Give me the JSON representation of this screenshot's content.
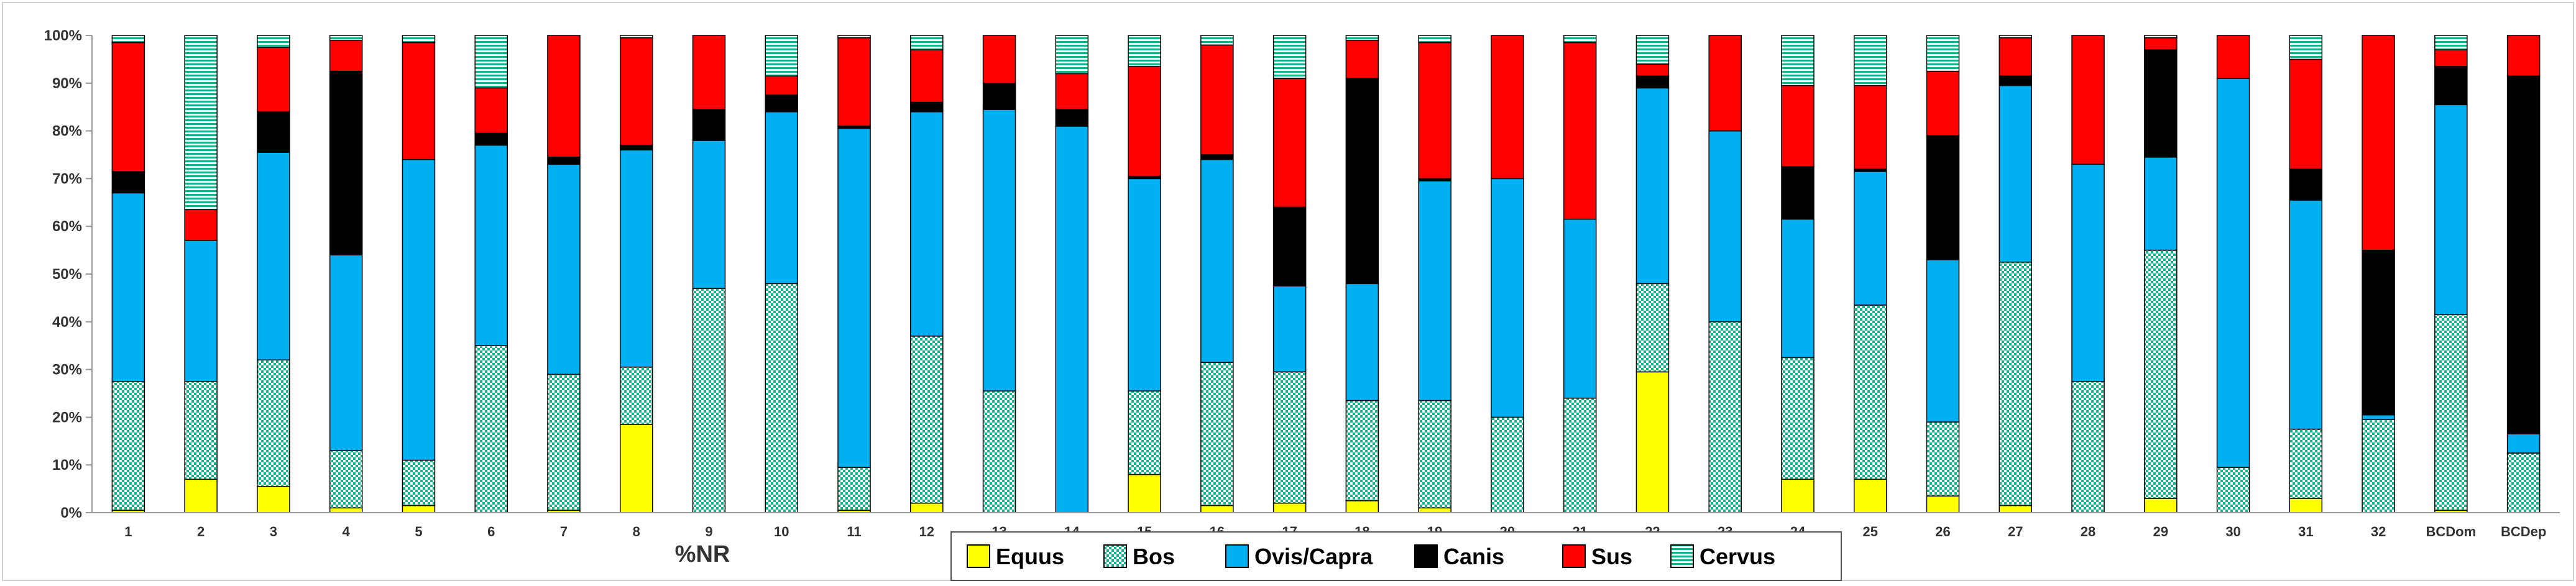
{
  "chart_data": {
    "type": "bar",
    "stacked": true,
    "title": "",
    "xlabel": "%NR",
    "ylabel": "",
    "ylim": [
      0,
      100
    ],
    "y_ticks": [
      "0%",
      "10%",
      "20%",
      "30%",
      "40%",
      "50%",
      "60%",
      "70%",
      "80%",
      "90%",
      "100%"
    ],
    "grid": false,
    "legend_position": "bottom",
    "categories": [
      "1",
      "2",
      "3",
      "4",
      "5",
      "6",
      "7",
      "8",
      "9",
      "10",
      "11",
      "12",
      "13",
      "14",
      "15",
      "16",
      "17",
      "18",
      "19",
      "20",
      "21",
      "22",
      "23",
      "24",
      "25",
      "26",
      "27",
      "28",
      "29",
      "30",
      "31",
      "32",
      "BCDom",
      "BCDep"
    ],
    "series": [
      {
        "name": "Equus",
        "color": "#ffff00",
        "pattern": "solid",
        "values": [
          0.5,
          7,
          5.5,
          1,
          1.5,
          0,
          0.5,
          18.5,
          0,
          0,
          0.5,
          2,
          0,
          0,
          8,
          1.5,
          2,
          2.5,
          1,
          0,
          0,
          29.5,
          0,
          7,
          7,
          3.5,
          1.5,
          0,
          3,
          0,
          3,
          0,
          0.5,
          0
        ]
      },
      {
        "name": "Bos",
        "color": "#18b28a",
        "pattern": "checker",
        "values": [
          27,
          20.5,
          26.5,
          12,
          9.5,
          35,
          28.5,
          12,
          47,
          48,
          9,
          35,
          25.5,
          0,
          17.5,
          30,
          27.5,
          21,
          22.5,
          20,
          24,
          18.5,
          40,
          25.5,
          36.5,
          15.5,
          51,
          27.5,
          52,
          9.5,
          14.5,
          19.5,
          41,
          12.5
        ]
      },
      {
        "name": "Ovis/Capra",
        "color": "#00b0f0",
        "pattern": "solid",
        "values": [
          39.5,
          29.5,
          43.5,
          41,
          63,
          42,
          44,
          45.5,
          31,
          36,
          71,
          47,
          59,
          81,
          44.5,
          42.5,
          18,
          24.5,
          46,
          50,
          37.5,
          41,
          40,
          29,
          28,
          34,
          37,
          45.5,
          19.5,
          81.5,
          48,
          1,
          44,
          4
        ]
      },
      {
        "name": "Canis",
        "color": "#000000",
        "pattern": "solid",
        "values": [
          4.5,
          0,
          8.5,
          38.5,
          0,
          2.5,
          1.5,
          1,
          6.5,
          3.5,
          0.5,
          2,
          5.5,
          3.5,
          0.5,
          1,
          16.5,
          43,
          0.5,
          0,
          0,
          2.5,
          0,
          11,
          0.5,
          26,
          2,
          0,
          22.5,
          0,
          6.5,
          34.5,
          8,
          75
        ]
      },
      {
        "name": "Sus",
        "color": "#ff0000",
        "pattern": "solid",
        "values": [
          27,
          6.5,
          13.5,
          6.5,
          24.5,
          9.5,
          25.5,
          22.5,
          15.5,
          4,
          18.5,
          11,
          10,
          7.5,
          23,
          23,
          27,
          8,
          28.5,
          30,
          37,
          2.5,
          20,
          17,
          17.5,
          13.5,
          8,
          27,
          2.5,
          9,
          23,
          45,
          3.5,
          8.5
        ]
      },
      {
        "name": "Cervus",
        "color": "#18b28a",
        "pattern": "stripe",
        "values": [
          1.5,
          36.5,
          2.5,
          1,
          1.5,
          11,
          0,
          0.5,
          0,
          8.5,
          0.5,
          3,
          0,
          8,
          6.5,
          2,
          9,
          1,
          1.5,
          0,
          1.5,
          6,
          0,
          10.5,
          10.5,
          7.5,
          0.5,
          0,
          0.5,
          0,
          5,
          0,
          3,
          0
        ]
      }
    ]
  }
}
